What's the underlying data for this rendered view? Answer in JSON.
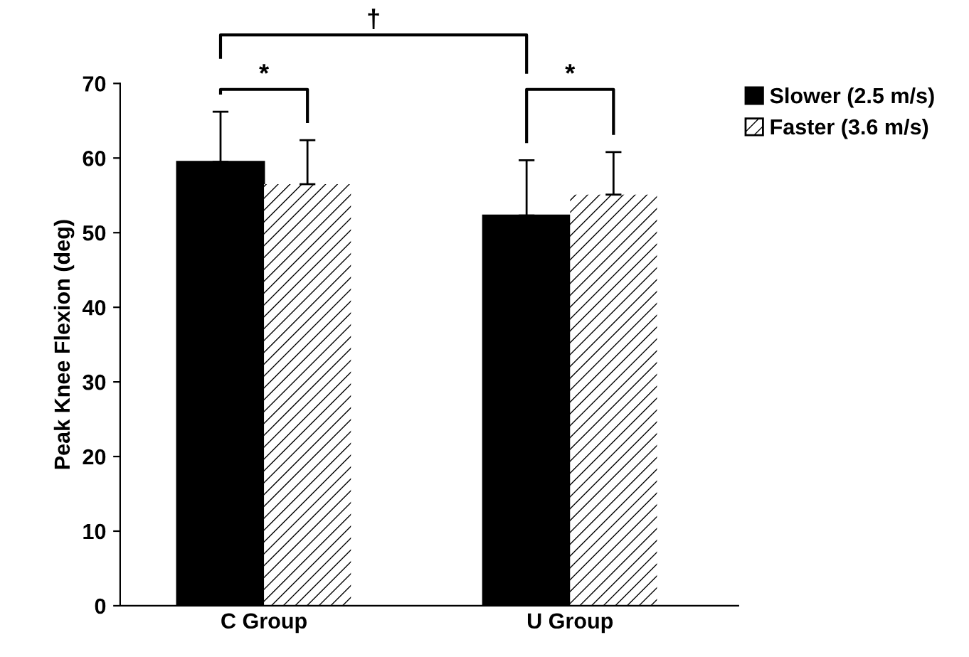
{
  "chart_data": {
    "type": "bar",
    "ylabel": "Peak Knee Flexion (deg)",
    "categories": [
      "C Group",
      "U Group"
    ],
    "series": [
      {
        "name": "Slower (2.5 m/s)",
        "color": "#000000",
        "values": [
          59.5,
          52.3
        ],
        "errors": [
          [
            59.5,
            66.2
          ],
          [
            52.3,
            59.7
          ]
        ]
      },
      {
        "name": "Faster (3.6 m/s)",
        "color": "#ffffff",
        "values": [
          56.5,
          55.1
        ],
        "errors": [
          [
            56.5,
            62.4
          ],
          [
            55.1,
            60.8
          ]
        ]
      }
    ],
    "ylim": [
      0,
      70
    ],
    "yticks": [
      0,
      10,
      20,
      30,
      40,
      50,
      60,
      70
    ],
    "annotations": [
      "*",
      "*",
      "†"
    ],
    "legend": "right",
    "grid": false
  }
}
